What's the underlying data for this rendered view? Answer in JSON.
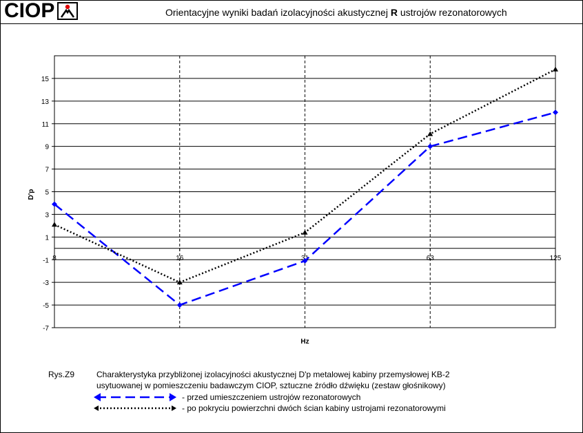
{
  "header": {
    "logo_text": "CIOP",
    "title_before": "Orientacyjne wyniki badań izolacyjności akustycznej ",
    "title_bold": "R",
    "title_after": " ustrojów rezonatorowych"
  },
  "colors": {
    "series1": "#0000ff",
    "series2": "#000000"
  },
  "chart_data": {
    "type": "line",
    "categories": [
      "8",
      "16",
      "31",
      "63",
      "125"
    ],
    "ylabel": "D'p",
    "xlabel": "Hz",
    "ylim": [
      -7,
      17
    ],
    "yticks": [
      -7,
      -5,
      -3,
      -1,
      1,
      3,
      5,
      7,
      9,
      11,
      13,
      15
    ],
    "grid": true,
    "series": [
      {
        "name": "przed umieszczeniem ustrojów rezonatorowych",
        "values": [
          3.9,
          -5.0,
          -1.1,
          9.0,
          12.0
        ],
        "color": "#0000ff",
        "style": "dashed",
        "marker": "diamond"
      },
      {
        "name": "po pokryciu powierzchni dwóch ścian kabiny ustrojami rezonatorowymi",
        "values": [
          2.1,
          -3.0,
          1.4,
          10.1,
          15.8
        ],
        "color": "#000000",
        "style": "dotted",
        "marker": "triangle"
      }
    ]
  },
  "caption": {
    "label": "Rys.Z9",
    "line1": "Charakterystyka przybliżonej izolacyjności akustycznej D'p metalowej  kabiny przemysłowej KB-2",
    "line2": "usytuowanej w pomieszczeniu badawczym CIOP,  sztuczne źródło dźwięku (zestaw głośnikowy)"
  },
  "legend": [
    {
      "text": "- przed umieszczeniem ustrojów rezonatorowych"
    },
    {
      "text": "- po pokryciu powierzchni dwóch ścian kabiny ustrojami rezonatorowymi"
    }
  ]
}
